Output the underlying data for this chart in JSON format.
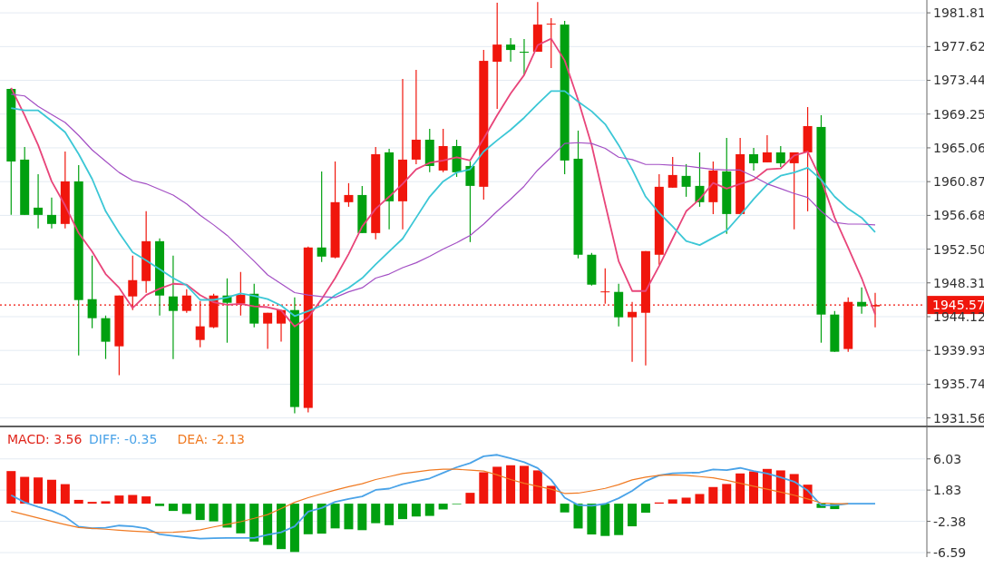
{
  "chart_data": [
    {
      "type": "candlestick",
      "categories": [
        null,
        null,
        null,
        null,
        null,
        null,
        null,
        null,
        null,
        null,
        null,
        null,
        null,
        null,
        null,
        null,
        null,
        null,
        null,
        null,
        null,
        null,
        null,
        null,
        null,
        null,
        null,
        null,
        null,
        null,
        null,
        null,
        null,
        null,
        null,
        null,
        null,
        null,
        null,
        null,
        null,
        null,
        null,
        null,
        null,
        null,
        null,
        null,
        null,
        null,
        null,
        null,
        null,
        null,
        null,
        null,
        null,
        null,
        null,
        null,
        null,
        null,
        null,
        null,
        null
      ],
      "ohlc": [
        [
          1972.37,
          1972.48,
          1956.74,
          1963.37
        ],
        [
          1963.6,
          1965.17,
          1956.74,
          1956.74
        ],
        [
          1957.64,
          1961.8,
          1955.06,
          1956.74
        ],
        [
          1956.74,
          1958.88,
          1955.06,
          1955.62
        ],
        [
          1955.62,
          1964.61,
          1955.06,
          1960.9
        ],
        [
          1960.9,
          1962.92,
          1939.32,
          1946.18
        ],
        [
          1946.29,
          1951.68,
          1942.69,
          1943.93
        ],
        [
          1943.93,
          1944.26,
          1938.87,
          1941.01
        ],
        [
          1940.44,
          1946.74,
          1936.85,
          1946.74
        ],
        [
          1946.63,
          1951.68,
          1944.94,
          1948.65
        ],
        [
          1948.54,
          1957.19,
          1947.08,
          1953.48
        ],
        [
          1953.48,
          1953.82,
          1944.26,
          1946.74
        ],
        [
          1946.63,
          1951.68,
          1938.87,
          1944.83
        ],
        [
          1944.83,
          1947.53,
          1944.6,
          1946.74
        ],
        [
          1941.23,
          1946.06,
          1940.33,
          1942.92
        ],
        [
          1942.8,
          1946.96,
          1942.69,
          1946.74
        ],
        [
          1946.74,
          1948.87,
          1940.89,
          1945.84
        ],
        [
          1945.73,
          1949.66,
          1944.26,
          1946.85
        ],
        [
          1946.96,
          1948.2,
          1942.8,
          1943.26
        ],
        [
          1943.26,
          1944.6,
          1940.11,
          1944.6
        ],
        [
          1943.26,
          1944.94,
          1941.01,
          1944.94
        ],
        [
          1944.94,
          1946.51,
          1932.13,
          1932.91
        ],
        [
          1932.8,
          1952.81,
          1932.24,
          1952.7
        ],
        [
          1952.7,
          1962.14,
          1950.9,
          1951.57
        ],
        [
          1951.46,
          1963.37,
          1951.35,
          1958.32
        ],
        [
          1958.32,
          1960.68,
          1957.75,
          1959.21
        ],
        [
          1959.21,
          1960.34,
          1954.49,
          1954.49
        ],
        [
          1954.49,
          1965.17,
          1953.71,
          1964.27
        ],
        [
          1964.5,
          1964.95,
          1954.94,
          1958.43
        ],
        [
          1958.43,
          1973.61,
          1954.94,
          1963.6
        ],
        [
          1963.6,
          1974.73,
          1963.04,
          1966.07
        ],
        [
          1966.07,
          1967.42,
          1962.03,
          1962.81
        ],
        [
          1962.25,
          1967.42,
          1962.03,
          1965.28
        ],
        [
          1965.28,
          1966.07,
          1961.46,
          1962.03
        ],
        [
          1962.81,
          1963.37,
          1953.37,
          1960.34
        ],
        [
          1960.23,
          1977.2,
          1958.65,
          1975.85
        ],
        [
          1975.74,
          1983.05,
          1969.89,
          1977.87
        ],
        [
          1977.87,
          1978.66,
          1975.74,
          1977.2
        ],
        [
          1976.98,
          1978.55,
          1974.06,
          1976.86
        ],
        [
          1976.98,
          1983.16,
          1976.98,
          1980.35
        ],
        [
          1980.35,
          1981.14,
          1974.95,
          1980.46
        ],
        [
          1980.35,
          1980.8,
          1961.8,
          1963.49
        ],
        [
          1963.71,
          1967.2,
          1951.35,
          1951.8
        ],
        [
          1951.8,
          1952.02,
          1947.98,
          1948.09
        ],
        [
          1947.19,
          1950.11,
          1945.73,
          1947.25
        ],
        [
          1947.19,
          1948.2,
          1942.92,
          1944.04
        ],
        [
          1944.04,
          1945.95,
          1938.53,
          1944.71
        ],
        [
          1944.6,
          1952.25,
          1938.08,
          1952.25
        ],
        [
          1951.8,
          1961.8,
          1950.56,
          1960.23
        ],
        [
          1960.12,
          1963.94,
          1960.12,
          1961.69
        ],
        [
          1961.58,
          1963.04,
          1958.99,
          1960.23
        ],
        [
          1960.34,
          1964.5,
          1957.75,
          1958.32
        ],
        [
          1958.32,
          1963.37,
          1956.85,
          1962.25
        ],
        [
          1962.14,
          1966.3,
          1954.38,
          1956.85
        ],
        [
          1956.85,
          1966.3,
          1956.85,
          1964.27
        ],
        [
          1964.27,
          1965.06,
          1962.25,
          1963.15
        ],
        [
          1963.26,
          1966.63,
          1963.26,
          1964.5
        ],
        [
          1964.5,
          1965.28,
          1962.7,
          1963.15
        ],
        [
          1963.15,
          1964.5,
          1954.94,
          1964.5
        ],
        [
          1964.5,
          1970.12,
          1957.19,
          1967.76
        ],
        [
          1967.65,
          1969.11,
          1940.89,
          1944.38
        ],
        [
          1944.38,
          1944.83,
          1939.77,
          1939.77
        ],
        [
          1940.11,
          1946.51,
          1939.77,
          1945.95
        ],
        [
          1945.95,
          1947.75,
          1944.49,
          1945.39
        ],
        [
          1945.39,
          1947.08,
          1942.8,
          1945.57
        ]
      ],
      "colors": [
        "#00a010",
        "#00a010",
        "#00a010",
        "#00a010",
        "#f0160c",
        "#00a010",
        "#00a010",
        "#00a010",
        "#f0160c",
        "#f0160c",
        "#f0160c",
        "#00a010",
        "#00a010",
        "#f0160c",
        "#f0160c",
        "#f0160c",
        "#00a010",
        "#f0160c",
        "#00a010",
        "#f0160c",
        "#f0160c",
        "#00a010",
        "#f0160c",
        "#00a010",
        "#f0160c",
        "#f0160c",
        "#00a010",
        "#f0160c",
        "#00a010",
        "#f0160c",
        "#f0160c",
        "#00a010",
        "#f0160c",
        "#00a010",
        "#00a010",
        "#f0160c",
        "#f0160c",
        "#00a010",
        "#00a010",
        "#f0160c",
        "#f0160c",
        "#00a010",
        "#00a010",
        "#00a010",
        "#f0160c",
        "#00a010",
        "#f0160c",
        "#f0160c",
        "#f0160c",
        "#f0160c",
        "#00a010",
        "#00a010",
        "#f0160c",
        "#00a010",
        "#f0160c",
        "#00a010",
        "#f0160c",
        "#00a010",
        "#f0160c",
        "#f0160c",
        "#00a010",
        "#00a010",
        "#f0160c",
        "#00a010",
        "#f0160c"
      ],
      "series": [
        {
          "type": "line",
          "color": "#e8457a",
          "values": [
            1972.5,
            1969.1,
            1965.4,
            1960.9,
            1957.9,
            1954.5,
            1952.2,
            1949.4,
            1947.7,
            1945.2,
            1946.8,
            1947.6,
            1948.2,
            1948.1,
            1946.8,
            1945.9,
            1945.6,
            1945.7,
            1945.4,
            1945.3,
            1944.9,
            1942.9,
            1944.0,
            1946.3,
            1948.9,
            1951.9,
            1955.3,
            1957.5,
            1959.0,
            1960.6,
            1962.4,
            1963.2,
            1963.5,
            1963.9,
            1963.5,
            1966.2,
            1969.1,
            1971.8,
            1974.1,
            1977.8,
            1978.6,
            1975.9,
            1971.0,
            1965.4,
            1958.1,
            1951.0,
            1947.3,
            1947.3,
            1950.4,
            1953.8,
            1957.2,
            1958.7,
            1960.7,
            1960.0,
            1960.6,
            1961.1,
            1962.4,
            1962.5,
            1964.1,
            1964.6,
            1961.1,
            1956.4,
            1952.7,
            1948.9,
            1944.4
          ]
        },
        {
          "type": "line",
          "color": "#3cc7d6",
          "values": [
            1970.0,
            1969.7,
            1969.7,
            1968.4,
            1967.0,
            1964.3,
            1961.2,
            1957.2,
            1954.5,
            1952.1,
            1951.1,
            1950.0,
            1948.9,
            1948.0,
            1946.2,
            1946.2,
            1946.5,
            1947.0,
            1946.7,
            1946.3,
            1945.5,
            1944.2,
            1944.8,
            1945.5,
            1946.8,
            1947.7,
            1948.9,
            1950.6,
            1952.2,
            1953.8,
            1956.4,
            1959.0,
            1960.9,
            1962.0,
            1962.4,
            1964.6,
            1966.0,
            1967.3,
            1968.8,
            1970.5,
            1972.1,
            1972.1,
            1970.8,
            1969.6,
            1968.0,
            1965.4,
            1962.4,
            1959.0,
            1957.0,
            1955.3,
            1953.5,
            1953.0,
            1953.9,
            1954.8,
            1956.7,
            1958.7,
            1960.5,
            1961.6,
            1962.0,
            1962.6,
            1961.1,
            1959.0,
            1957.5,
            1956.4,
            1954.6
          ]
        },
        {
          "type": "line",
          "color": "#a34fc4",
          "values": [
            1971.7,
            1971.5,
            1970.2,
            1969.2,
            1968.2,
            1966.6,
            1964.8,
            1963.4,
            1962.0,
            1961.0,
            1960.6,
            1959.9,
            1959.2,
            1958.1,
            1956.7,
            1955.5,
            1954.2,
            1952.6,
            1951.0,
            1949.3,
            1948.2,
            1947.1,
            1946.8,
            1946.6,
            1946.5,
            1947.2,
            1947.7,
            1948.9,
            1949.4,
            1950.2,
            1950.8,
            1951.6,
            1952.5,
            1953.3,
            1954.2,
            1955.6,
            1957.2,
            1958.7,
            1960.3,
            1962.3,
            1963.9,
            1965.6,
            1965.7,
            1965.6,
            1965.0,
            1963.9,
            1963.6,
            1963.0,
            1963.0,
            1962.9,
            1962.8,
            1962.6,
            1962.4,
            1962.3,
            1962.3,
            1961.5,
            1960.6,
            1960.0,
            1959.4,
            1958.9,
            1957.2,
            1955.8,
            1955.6,
            1955.6,
            1955.5
          ]
        }
      ],
      "ylim": [
        1930.5,
        1983.4
      ],
      "yticks": [
        1931.56,
        1935.74,
        1939.93,
        1944.12,
        1948.31,
        {
          "value": 1952.5,
          "label": "1952.50"
        },
        1956.68,
        1960.87,
        1965.06,
        1969.25,
        1973.44,
        1977.62,
        1981.81
      ],
      "grid": "y",
      "tick_labels": "y",
      "ref_lines": [
        {
          "axis": "y",
          "value": 1945.57,
          "label": "1945.57",
          "color": "#f0160c",
          "line_style": "dotted"
        }
      ]
    },
    {
      "type": "bar",
      "categories": [
        null,
        null,
        null,
        null,
        null,
        null,
        null,
        null,
        null,
        null,
        null,
        null,
        null,
        null,
        null,
        null,
        null,
        null,
        null,
        null,
        null,
        null,
        null,
        null,
        null,
        null,
        null,
        null,
        null,
        null,
        null,
        null,
        null,
        null,
        null,
        null,
        null,
        null,
        null,
        null,
        null,
        null,
        null,
        null,
        null,
        null,
        null,
        null,
        null,
        null,
        null,
        null,
        null,
        null,
        null,
        null,
        null,
        null,
        null,
        null,
        null,
        null,
        null,
        null,
        null
      ],
      "series": [
        {
          "name": "MACD: 3.56",
          "type": "bar",
          "color": "#e0251b",
          "colors": [
            "#f0160c",
            "#f0160c",
            "#f0160c",
            "#f0160c",
            "#f0160c",
            "#f0160c",
            "#f0160c",
            "#f0160c",
            "#f0160c",
            "#f0160c",
            "#f0160c",
            "#00a010",
            "#00a010",
            "#00a010",
            "#00a010",
            "#00a010",
            "#00a010",
            "#00a010",
            "#00a010",
            "#00a010",
            "#00a010",
            "#00a010",
            "#00a010",
            "#00a010",
            "#00a010",
            "#00a010",
            "#00a010",
            "#00a010",
            "#00a010",
            "#00a010",
            "#00a010",
            "#00a010",
            "#00a010",
            "#00a010",
            "#f0160c",
            "#f0160c",
            "#f0160c",
            "#f0160c",
            "#f0160c",
            "#f0160c",
            "#f0160c",
            "#00a010",
            "#00a010",
            "#00a010",
            "#00a010",
            "#00a010",
            "#00a010",
            "#00a010",
            "#f0160c",
            "#f0160c",
            "#f0160c",
            "#f0160c",
            "#f0160c",
            "#f0160c",
            "#f0160c",
            "#f0160c",
            "#f0160c",
            "#f0160c",
            "#f0160c",
            "#f0160c",
            "#00a010",
            "#00a010",
            null,
            null,
            null
          ],
          "values": [
            4.39,
            3.61,
            3.53,
            3.22,
            2.63,
            0.51,
            0.24,
            0.32,
            1.1,
            1.17,
            0.98,
            -0.32,
            -0.98,
            -1.38,
            -2.2,
            -2.39,
            -3.22,
            -4.0,
            -5.1,
            -5.57,
            -6.12,
            -6.51,
            -4.12,
            -4.04,
            -3.33,
            -3.45,
            -3.57,
            -2.63,
            -2.9,
            -2.08,
            -1.73,
            -1.65,
            -0.78,
            -0.08,
            1.46,
            4.23,
            4.97,
            5.17,
            5.09,
            4.48,
            2.4,
            -1.18,
            -3.34,
            -4.15,
            -4.35,
            -4.23,
            -3.05,
            -1.22,
            0.16,
            0.57,
            0.81,
            1.3,
            2.24,
            2.65,
            4.07,
            4.35,
            4.68,
            4.48,
            3.99,
            2.56,
            -0.57,
            -0.73,
            null,
            null,
            null
          ]
        },
        {
          "name": "DIFF: -0.35",
          "type": "line",
          "color": "#4aa3e8",
          "values": [
            1.15,
            0.18,
            -0.44,
            -0.96,
            -1.76,
            -3.09,
            -3.32,
            -3.25,
            -2.95,
            -3.06,
            -3.34,
            -4.12,
            -4.35,
            -4.54,
            -4.71,
            -4.65,
            -4.63,
            -4.63,
            -4.63,
            -4.2,
            -3.86,
            -3.06,
            -1.07,
            -0.59,
            0.24,
            0.64,
            0.98,
            1.85,
            2.03,
            2.63,
            3.03,
            3.4,
            4.16,
            4.9,
            5.47,
            6.38,
            6.58,
            6.1,
            5.59,
            4.79,
            3.2,
            0.81,
            -0.19,
            -0.28,
            -0.02,
            0.73,
            1.72,
            3.03,
            3.82,
            4.1,
            4.15,
            4.2,
            4.6,
            4.53,
            4.81,
            4.39,
            4.05,
            3.54,
            2.97,
            1.77,
            -0.22,
            -0.22,
            0,
            0,
            0
          ]
        },
        {
          "name": "DEA: -2.13",
          "type": "line",
          "color": "#f07a22",
          "values": [
            -1.01,
            -1.47,
            -1.92,
            -2.38,
            -2.81,
            -3.22,
            -3.34,
            -3.44,
            -3.57,
            -3.69,
            -3.8,
            -3.89,
            -3.86,
            -3.74,
            -3.52,
            -3.14,
            -2.78,
            -2.43,
            -1.98,
            -1.47,
            -0.67,
            0.18,
            0.81,
            1.32,
            1.83,
            2.29,
            2.68,
            3.25,
            3.65,
            4.05,
            4.28,
            4.51,
            4.63,
            4.63,
            4.51,
            4.39,
            3.88,
            3.25,
            2.74,
            2.34,
            1.95,
            1.38,
            1.42,
            1.72,
            2.06,
            2.56,
            3.2,
            3.58,
            3.82,
            3.87,
            3.82,
            3.65,
            3.48,
            3.14,
            2.74,
            2.34,
            1.95,
            1.55,
            1.14,
            0.64,
            0.1,
            0,
            0,
            null,
            null
          ]
        }
      ],
      "ylim": [
        -7.2,
        10.4
      ],
      "yticks": [
        6.03,
        1.83,
        -2.38,
        -6.59
      ],
      "grid": "y",
      "tick_labels": "y",
      "legend": "top left"
    }
  ]
}
